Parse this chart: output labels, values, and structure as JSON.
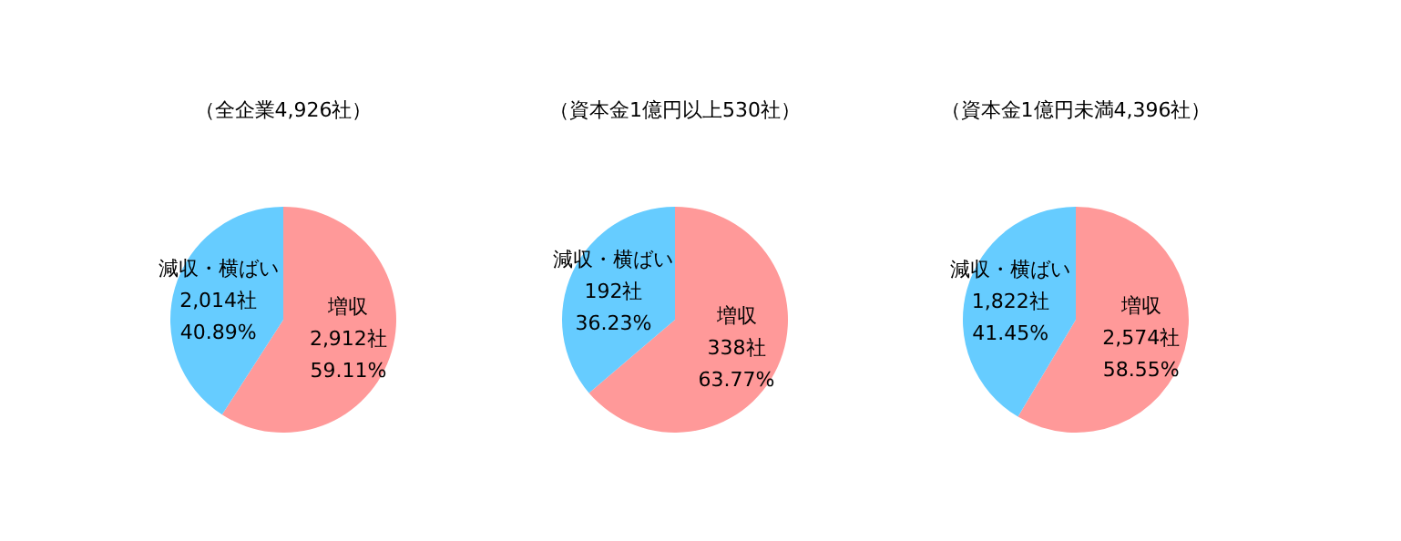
{
  "chart_data": [
    {
      "type": "pie",
      "title": "（全企業4,926社）",
      "categories": [
        "増収",
        "減収・横ばい"
      ],
      "values": [
        2912,
        2014
      ],
      "colors": [
        "#ff9999",
        "#66ccff"
      ],
      "value_labels": [
        "2,912社\n59.11%",
        "2,014社\n40.89%"
      ]
    },
    {
      "type": "pie",
      "title": "（資本金1億円以上530社）",
      "categories": [
        "増収",
        "減収・横ばい"
      ],
      "values": [
        338,
        192
      ],
      "colors": [
        "#ff9999",
        "#66ccff"
      ],
      "value_labels": [
        "338社\n63.77%",
        "192社\n36.23%"
      ]
    },
    {
      "type": "pie",
      "title": "（資本金1億円未満4,396社）",
      "categories": [
        "増収",
        "減収・横ばい"
      ],
      "values": [
        2574,
        1822
      ],
      "colors": [
        "#ff9999",
        "#66ccff"
      ],
      "value_labels": [
        "2,574社\n58.55%",
        "1,822社\n41.45%"
      ]
    }
  ]
}
